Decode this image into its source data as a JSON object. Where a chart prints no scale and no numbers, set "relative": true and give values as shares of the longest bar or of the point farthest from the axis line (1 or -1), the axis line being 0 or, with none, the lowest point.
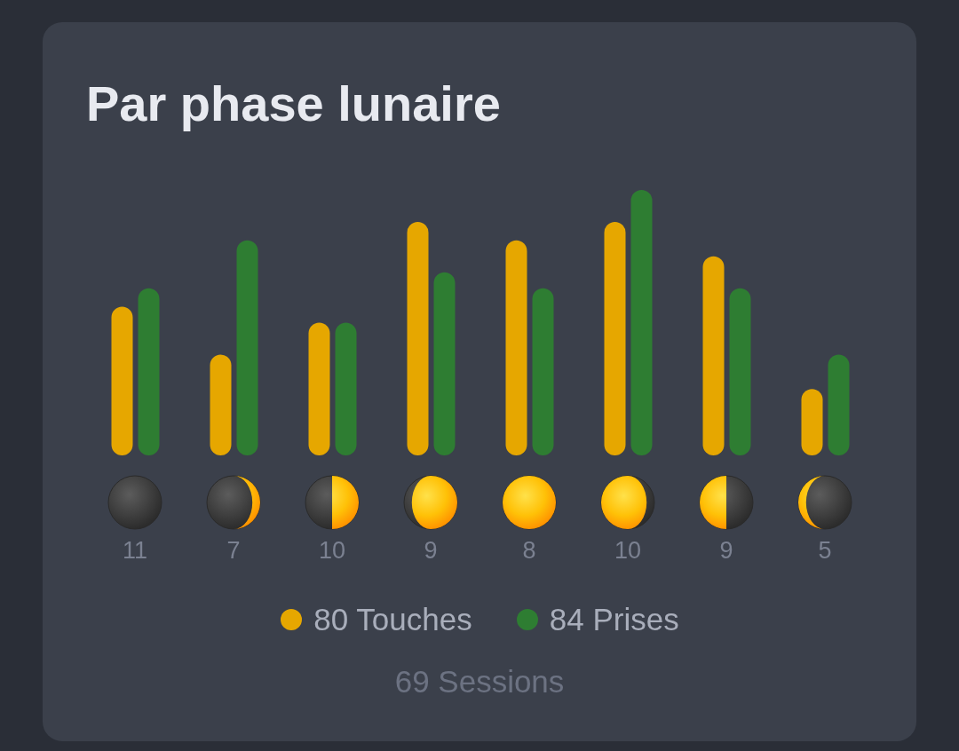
{
  "chart_data": {
    "type": "bar",
    "title": "Par phase lunaire",
    "categories": [
      "11",
      "7",
      "10",
      "9",
      "8",
      "10",
      "9",
      "5"
    ],
    "relative": true,
    "series": [
      {
        "name": "80 Touches",
        "color": "#e6a700",
        "values": [
          0.56,
          0.38,
          0.5,
          0.88,
          0.81,
          0.88,
          0.75,
          0.25
        ]
      },
      {
        "name": "84 Prises",
        "color": "#2e7d32",
        "values": [
          0.63,
          0.81,
          0.5,
          0.69,
          0.63,
          1,
          0.63,
          0.38
        ]
      }
    ],
    "legend": "bottom",
    "annotations": [
      "69 Sessions"
    ]
  }
}
